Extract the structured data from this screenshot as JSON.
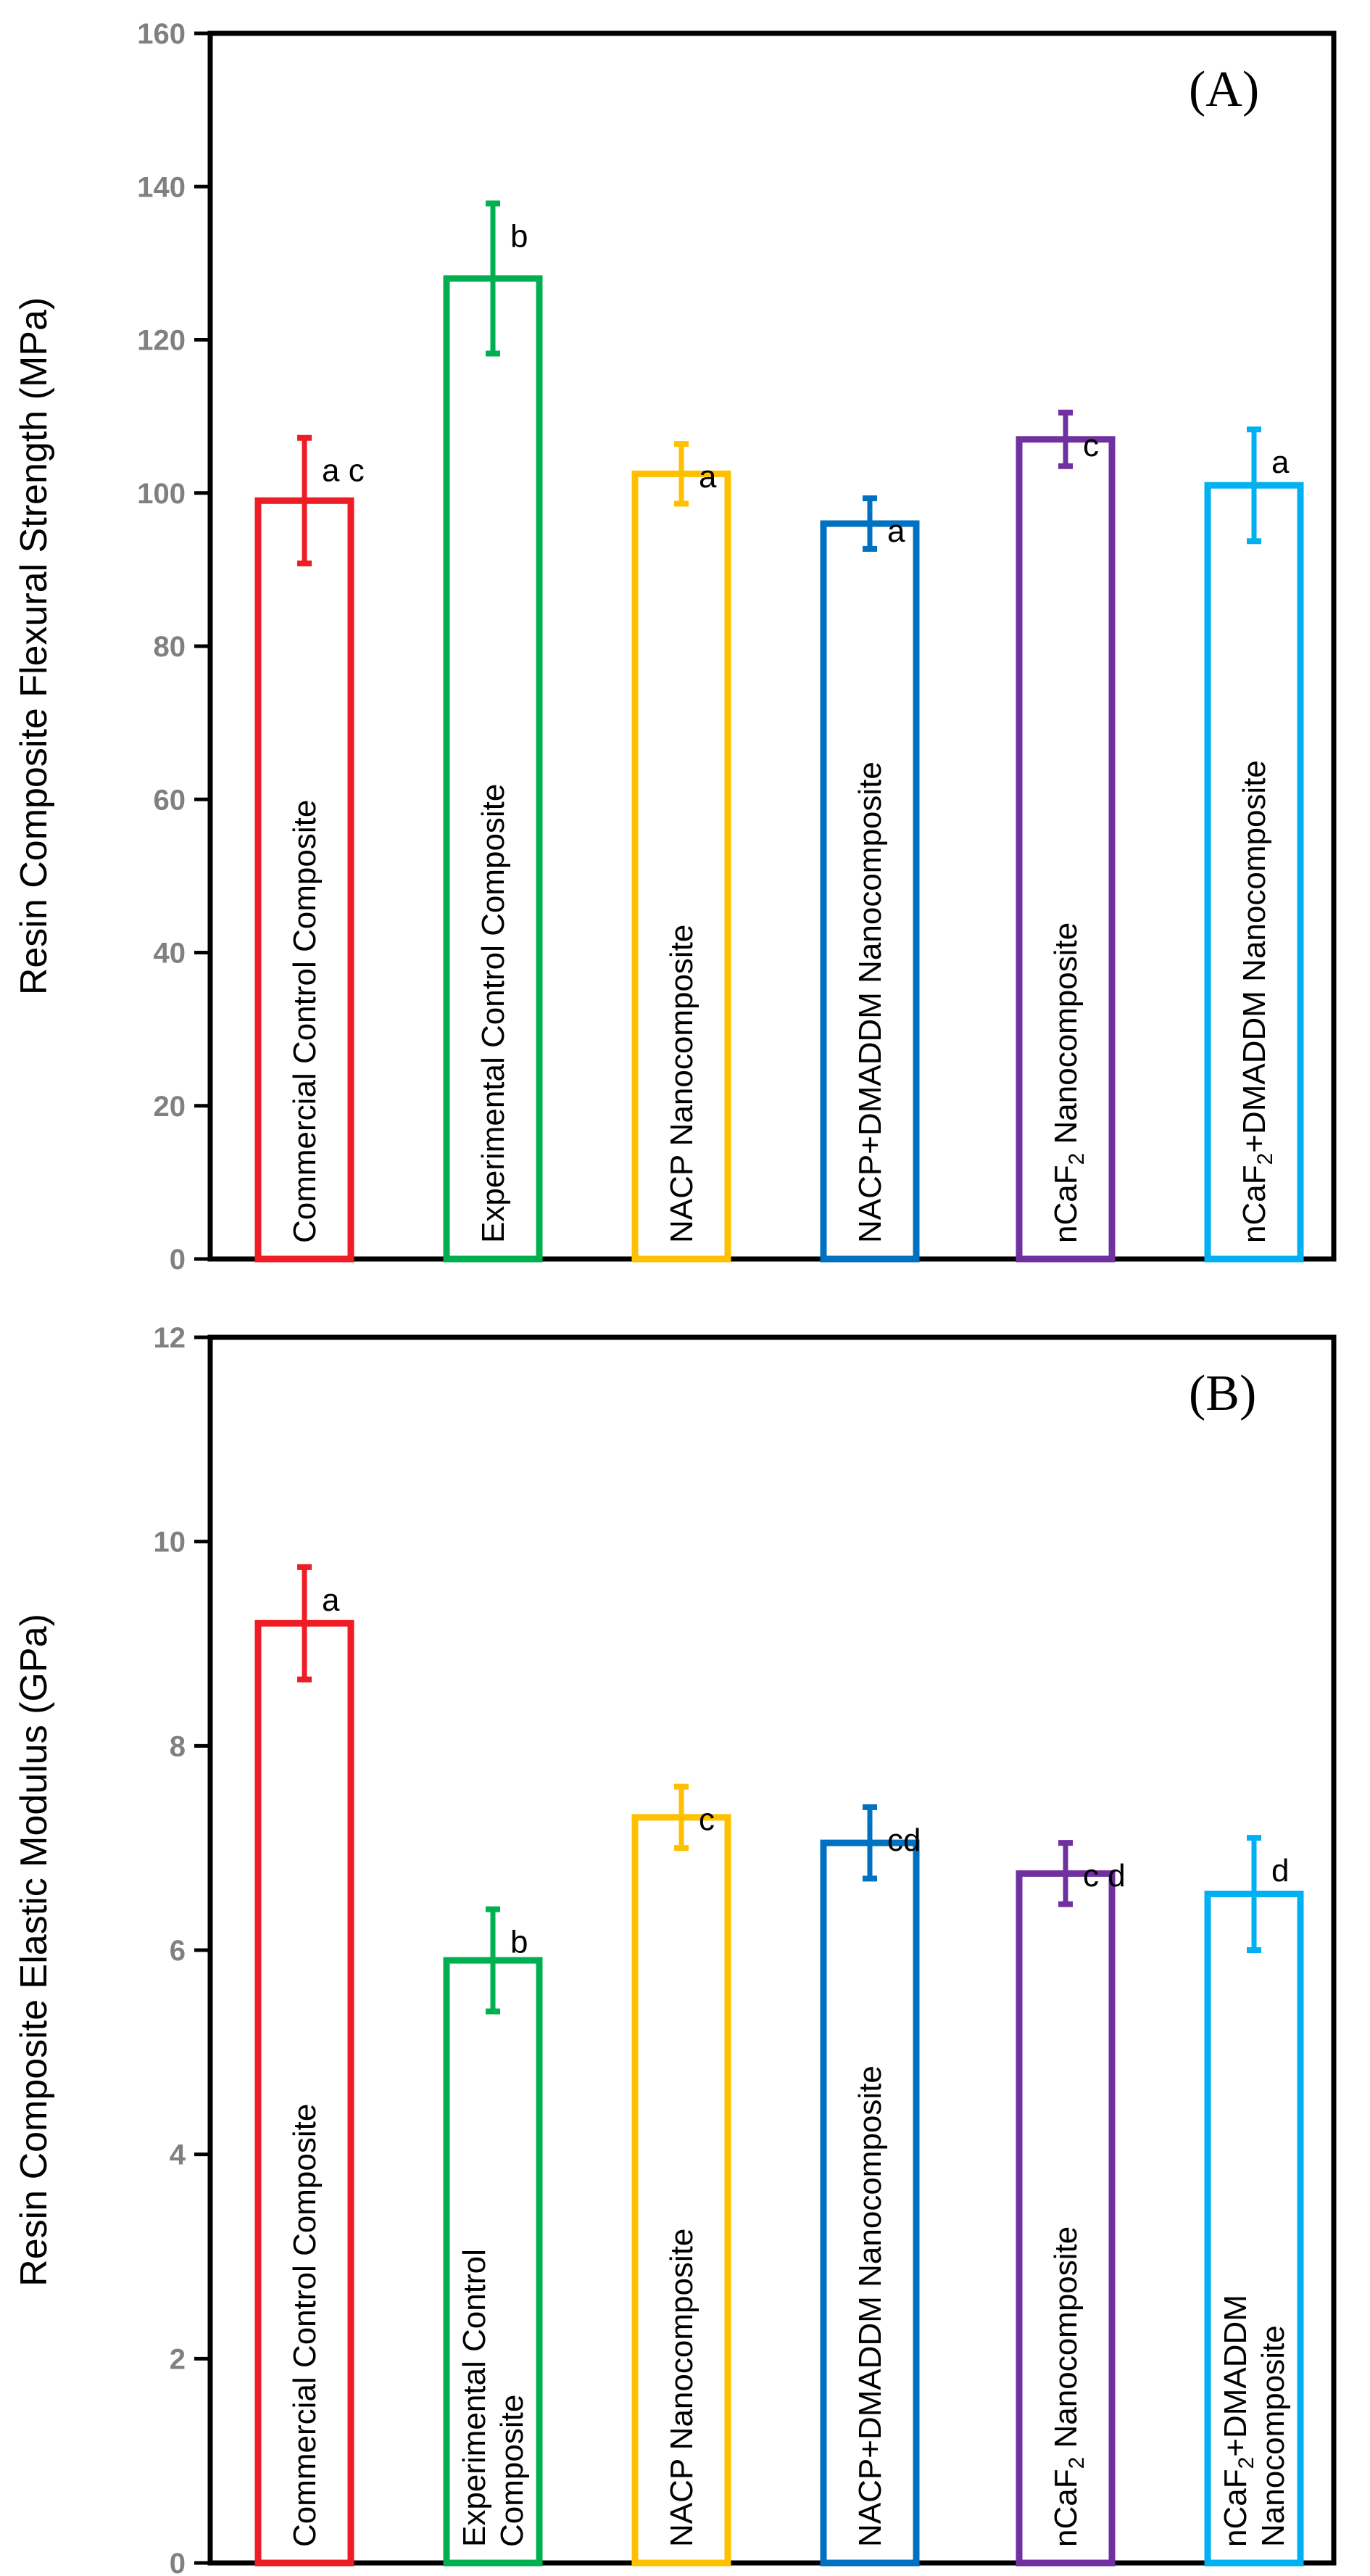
{
  "chart_data": [
    {
      "type": "bar",
      "panel_label": "(A)",
      "ylabel": "Resin Composite Flexural Strength (MPa)",
      "xlabel": "",
      "ylim": [
        0,
        160
      ],
      "yticks": [
        0,
        20,
        40,
        60,
        80,
        100,
        120,
        140,
        160
      ],
      "grid": false,
      "categories": [
        {
          "lines": [
            [
              {
                "t": "Commercial Control Composite"
              }
            ]
          ]
        },
        {
          "lines": [
            [
              {
                "t": "Experimental Control Composite"
              }
            ]
          ]
        },
        {
          "lines": [
            [
              {
                "t": "NACP Nanocomposite"
              }
            ]
          ]
        },
        {
          "lines": [
            [
              {
                "t": "NACP+DMADDM Nanocomposite"
              }
            ]
          ]
        },
        {
          "lines": [
            [
              {
                "t": "nCaF"
              },
              {
                "t": "2",
                "sub": true
              },
              {
                "t": " Nanocomposite"
              }
            ]
          ]
        },
        {
          "lines": [
            [
              {
                "t": "nCaF"
              },
              {
                "t": "2",
                "sub": true
              },
              {
                "t": "+DMADDM Nanocomposite"
              }
            ]
          ]
        }
      ],
      "values": [
        99,
        128,
        102.5,
        96,
        107,
        101
      ],
      "errors": [
        8.2,
        9.8,
        3.9,
        3.3,
        3.5,
        7.3
      ],
      "letters": [
        "a c",
        "b",
        "a",
        "a",
        "c",
        "a"
      ],
      "colors": [
        "#ee1c25",
        "#00b050",
        "#ffc000",
        "#0070c0",
        "#7030a0",
        "#00b0f0"
      ]
    },
    {
      "type": "bar",
      "panel_label": "(B)",
      "ylabel": "Resin Composite Elastic Modulus (GPa)",
      "xlabel": "",
      "ylim": [
        0,
        12
      ],
      "yticks": [
        0,
        2,
        4,
        6,
        8,
        10,
        12
      ],
      "grid": false,
      "categories": [
        {
          "lines": [
            [
              {
                "t": "Commercial Control Composite"
              }
            ]
          ]
        },
        {
          "lines": [
            [
              {
                "t": "Experimental Control"
              }
            ],
            [
              {
                "t": "Composite"
              }
            ]
          ]
        },
        {
          "lines": [
            [
              {
                "t": "NACP Nanocomposite"
              }
            ]
          ]
        },
        {
          "lines": [
            [
              {
                "t": "NACP+DMADDM Nanocomposite"
              }
            ]
          ]
        },
        {
          "lines": [
            [
              {
                "t": "nCaF"
              },
              {
                "t": "2",
                "sub": true
              },
              {
                "t": " Nanocomposite"
              }
            ]
          ]
        },
        {
          "lines": [
            [
              {
                "t": "nCaF"
              },
              {
                "t": "2",
                "sub": true
              },
              {
                "t": "+DMADDM"
              }
            ],
            [
              {
                "t": "Nanocomposite"
              }
            ]
          ]
        }
      ],
      "values": [
        9.2,
        5.9,
        7.3,
        7.05,
        6.75,
        6.55
      ],
      "errors": [
        0.55,
        0.5,
        0.3,
        0.35,
        0.3,
        0.55
      ],
      "letters": [
        "a",
        "b",
        "c",
        "cd",
        "c d",
        "d"
      ],
      "colors": [
        "#ee1c25",
        "#00b050",
        "#ffc000",
        "#0070c0",
        "#7030a0",
        "#00b0f0"
      ]
    }
  ]
}
